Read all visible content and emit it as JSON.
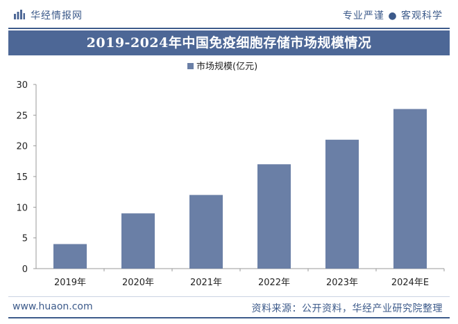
{
  "header": {
    "brand": "华经情报网",
    "slogan": "专业严谨 ● 客观科学"
  },
  "colors": {
    "accent": "#4d6796",
    "bar": "#6a7fa6",
    "text": "#3c5a8a"
  },
  "chart_data": {
    "type": "bar",
    "title": "2019-2024年中国免疫细胞存储市场规模情况",
    "legend_label": "市场规模(亿元)",
    "categories": [
      "2019年",
      "2020年",
      "2021年",
      "2022年",
      "2023年",
      "2024年E"
    ],
    "values": [
      4,
      9,
      12,
      17,
      21,
      26
    ],
    "yticks": [
      0,
      5,
      10,
      15,
      20,
      25,
      30
    ],
    "ylim": [
      0,
      30
    ],
    "xlabel": "",
    "ylabel": "",
    "legend_position": "top-center"
  },
  "footer": {
    "site": "www.huaon.com",
    "source": "资料来源：公开资料，华经产业研究院整理"
  }
}
